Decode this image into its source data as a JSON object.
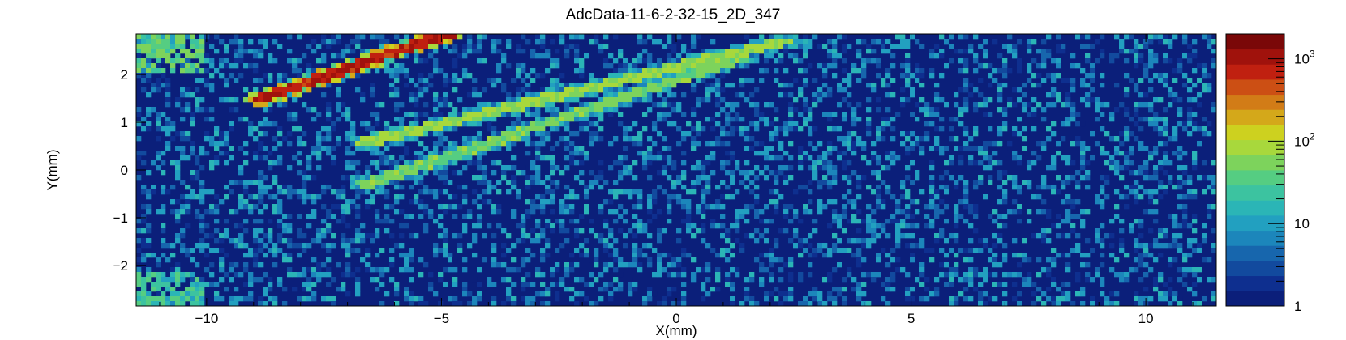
{
  "chart_data": {
    "type": "heatmap",
    "title": "AdcData-11-6-2-32-15_2D_347",
    "xlabel": "X(mm)",
    "ylabel": "Y(mm)",
    "xlim": [
      -11.5,
      11.5
    ],
    "ylim": [
      -2.85,
      2.85
    ],
    "x_ticks": [
      -10,
      -5,
      0,
      5,
      10
    ],
    "y_ticks": [
      -2,
      -1,
      0,
      1,
      2
    ],
    "x_tick_labels": [
      "−10",
      "−5",
      "0",
      "5",
      "10"
    ],
    "y_tick_labels": [
      "−2",
      "−1",
      "0",
      "1",
      "2"
    ],
    "z_scale": "log",
    "zlim": [
      1,
      2000
    ],
    "colorbar_ticks": [
      1,
      10,
      100,
      1000
    ],
    "colorbar_tick_labels": [
      {
        "base": "1",
        "exp": ""
      },
      {
        "base": "10",
        "exp": ""
      },
      {
        "base": "10",
        "exp": "2"
      },
      {
        "base": "10",
        "exp": "3"
      }
    ],
    "colormap": [
      "#0b1f7a",
      "#0e2f8f",
      "#124a9e",
      "#1766ad",
      "#1c86bb",
      "#22a0c0",
      "#2bb5b6",
      "#3cc3a0",
      "#55cd82",
      "#7dd35c",
      "#a8d83c",
      "#cdd11f",
      "#d4a81a",
      "#d27c17",
      "#cc4f14",
      "#c02010",
      "#a0120c",
      "#7a0808"
    ],
    "features": [
      {
        "name": "track",
        "x1": -8.8,
        "y1": 1.5,
        "x2": -4.9,
        "y2": 2.85,
        "level": 900
      },
      {
        "name": "track",
        "x1": -6.6,
        "y1": 0.58,
        "x2": 2.3,
        "y2": 2.7,
        "level": 80
      },
      {
        "name": "track",
        "x1": -6.6,
        "y1": -0.3,
        "x2": 1.4,
        "y2": 2.35,
        "level": 60
      },
      {
        "name": "hot-region",
        "x1": -11.5,
        "y1": 2.0,
        "x2": -10.0,
        "y2": 2.85,
        "level": 60
      },
      {
        "name": "hot-region",
        "x1": -11.5,
        "y1": -2.85,
        "x2": -10.0,
        "y2": -2.1,
        "level": 40
      }
    ]
  }
}
